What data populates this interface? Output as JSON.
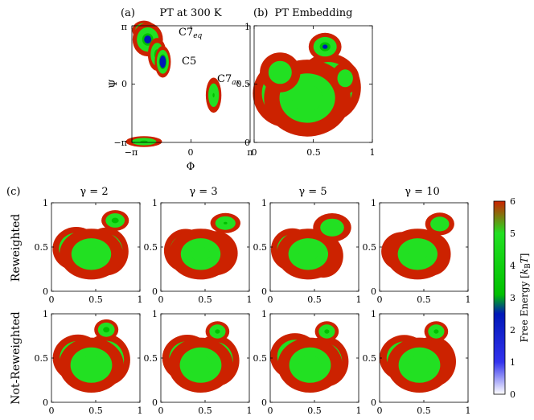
{
  "panels": {
    "a": {
      "label": "(a)",
      "title": "PT at 300 K",
      "xlabel": "Φ",
      "ylabel": "Ψ",
      "xticks": [
        "−π",
        "0",
        "π"
      ],
      "yticks": [
        "π",
        "0",
        "−π"
      ],
      "annotations": [
        {
          "base": "C7",
          "sub": "eq"
        },
        {
          "base": "C5",
          "sub": ""
        },
        {
          "base": "C7",
          "sub": "ax"
        }
      ]
    },
    "b": {
      "label": "(b)",
      "title": "PT Embedding",
      "xticks": [
        "0",
        "0.5",
        "1"
      ],
      "yticks": [
        "1",
        "0.5",
        "0"
      ]
    },
    "c": {
      "label": "(c)",
      "columns": [
        "γ = 2",
        "γ = 3",
        "γ = 5",
        "γ = 10"
      ],
      "rows": [
        {
          "label": "Reweighted",
          "color": "#d62020"
        },
        {
          "label": "Not-Reweighted",
          "color": "#1a1acc"
        }
      ],
      "xticks": [
        "0",
        "0.5",
        "1"
      ],
      "yticks": [
        "1",
        "0.5",
        "0"
      ]
    }
  },
  "colorbar": {
    "label": "Free Energy [k_B T]",
    "label_parts": {
      "pre": "Free Energy [",
      "k": "k",
      "sub": "B",
      "T": "T",
      "post": "]"
    },
    "ticks": [
      "0",
      "1",
      "2",
      "3",
      "4",
      "5",
      "6"
    ],
    "range": [
      0,
      6
    ],
    "stops": [
      {
        "v": 0,
        "color": "#ffffff"
      },
      {
        "v": 1,
        "color": "#3333ee"
      },
      {
        "v": 2.5,
        "color": "#0018b8"
      },
      {
        "v": 3.1,
        "color": "#00c000"
      },
      {
        "v": 5,
        "color": "#22e022"
      },
      {
        "v": 6,
        "color": "#cc2200"
      }
    ]
  },
  "chart_data": [
    {
      "type": "heatmap",
      "id": "a",
      "title": "PT at 300 K",
      "xlabel": "Φ",
      "ylabel": "Ψ",
      "xlim": [
        -3.1416,
        3.1416
      ],
      "ylim": [
        -3.1416,
        3.1416
      ],
      "basins": [
        {
          "x": -2.5,
          "y": 2.9,
          "sx": 0.3,
          "sy": 0.25,
          "depth": 5.2,
          "name": "C7eq"
        },
        {
          "x": -2.3,
          "y": 2.4,
          "sx": 0.4,
          "sy": 0.45,
          "depth": 4.6
        },
        {
          "x": -1.8,
          "y": 1.6,
          "sx": 0.25,
          "sy": 0.45,
          "depth": 4.2
        },
        {
          "x": -1.5,
          "y": 1.2,
          "sx": 0.2,
          "sy": 0.4,
          "depth": 5.8,
          "name": "C5"
        },
        {
          "x": 1.2,
          "y": -0.6,
          "sx": 0.22,
          "sy": 0.5,
          "depth": 3.6,
          "name": "C7ax"
        },
        {
          "x": -2.5,
          "y": -3.1,
          "sx": 0.5,
          "sy": 0.15,
          "depth": 3.8
        }
      ]
    },
    {
      "type": "heatmap",
      "id": "b",
      "title": "PT Embedding",
      "xlim": [
        0,
        1
      ],
      "ylim": [
        0,
        1
      ],
      "basins": [
        {
          "x": 0.28,
          "y": 0.42,
          "sx": 0.14,
          "sy": 0.14,
          "depth": 5.2
        },
        {
          "x": 0.63,
          "y": 0.47,
          "sx": 0.13,
          "sy": 0.14,
          "depth": 5.5
        },
        {
          "x": 0.45,
          "y": 0.38,
          "sx": 0.2,
          "sy": 0.18,
          "depth": 3.2
        },
        {
          "x": 0.22,
          "y": 0.6,
          "sx": 0.1,
          "sy": 0.1,
          "depth": 2.6
        },
        {
          "x": 0.6,
          "y": 0.82,
          "sx": 0.07,
          "sy": 0.06,
          "depth": 4.3
        },
        {
          "x": 0.77,
          "y": 0.55,
          "sx": 0.07,
          "sy": 0.08,
          "depth": 2.5
        }
      ]
    },
    {
      "type": "heatmap",
      "id": "c-r-2",
      "row": "Reweighted",
      "column": "γ = 2",
      "xlim": [
        0,
        1
      ],
      "ylim": [
        0,
        1
      ],
      "basins": [
        {
          "x": 0.28,
          "y": 0.48,
          "sx": 0.13,
          "sy": 0.12,
          "depth": 5.0
        },
        {
          "x": 0.62,
          "y": 0.45,
          "sx": 0.12,
          "sy": 0.13,
          "depth": 5.3
        },
        {
          "x": 0.45,
          "y": 0.42,
          "sx": 0.2,
          "sy": 0.16,
          "depth": 3.0
        },
        {
          "x": 0.72,
          "y": 0.8,
          "sx": 0.08,
          "sy": 0.06,
          "depth": 4.0
        }
      ]
    },
    {
      "type": "heatmap",
      "id": "c-r-3",
      "row": "Reweighted",
      "column": "γ = 3",
      "xlim": [
        0,
        1
      ],
      "ylim": [
        0,
        1
      ],
      "basins": [
        {
          "x": 0.28,
          "y": 0.46,
          "sx": 0.12,
          "sy": 0.12,
          "depth": 4.8
        },
        {
          "x": 0.62,
          "y": 0.43,
          "sx": 0.12,
          "sy": 0.12,
          "depth": 5.2
        },
        {
          "x": 0.45,
          "y": 0.42,
          "sx": 0.2,
          "sy": 0.16,
          "depth": 3.0
        },
        {
          "x": 0.73,
          "y": 0.77,
          "sx": 0.09,
          "sy": 0.06,
          "depth": 3.6
        }
      ]
    },
    {
      "type": "heatmap",
      "id": "c-r-5",
      "row": "Reweighted",
      "column": "γ = 5",
      "xlim": [
        0,
        1
      ],
      "ylim": [
        0,
        1
      ],
      "basins": [
        {
          "x": 0.25,
          "y": 0.47,
          "sx": 0.12,
          "sy": 0.12,
          "depth": 4.6
        },
        {
          "x": 0.6,
          "y": 0.4,
          "sx": 0.11,
          "sy": 0.12,
          "depth": 4.9
        },
        {
          "x": 0.43,
          "y": 0.42,
          "sx": 0.2,
          "sy": 0.16,
          "depth": 3.0
        },
        {
          "x": 0.7,
          "y": 0.72,
          "sx": 0.12,
          "sy": 0.09,
          "depth": 3.0
        }
      ]
    },
    {
      "type": "heatmap",
      "id": "c-r-10",
      "row": "Reweighted",
      "column": "γ = 10",
      "xlim": [
        0,
        1
      ],
      "ylim": [
        0,
        1
      ],
      "basins": [
        {
          "x": 0.26,
          "y": 0.45,
          "sx": 0.12,
          "sy": 0.11,
          "depth": 4.5
        },
        {
          "x": 0.58,
          "y": 0.42,
          "sx": 0.11,
          "sy": 0.12,
          "depth": 4.8
        },
        {
          "x": 0.43,
          "y": 0.42,
          "sx": 0.2,
          "sy": 0.16,
          "depth": 3.0
        },
        {
          "x": 0.68,
          "y": 0.76,
          "sx": 0.09,
          "sy": 0.07,
          "depth": 3.2
        }
      ]
    },
    {
      "type": "heatmap",
      "id": "c-n-2",
      "row": "Not-Reweighted",
      "column": "γ = 2",
      "xlim": [
        0,
        1
      ],
      "ylim": [
        0,
        1
      ],
      "basins": [
        {
          "x": 0.3,
          "y": 0.5,
          "sx": 0.14,
          "sy": 0.13,
          "depth": 4.8
        },
        {
          "x": 0.62,
          "y": 0.48,
          "sx": 0.13,
          "sy": 0.14,
          "depth": 5.2
        },
        {
          "x": 0.45,
          "y": 0.42,
          "sx": 0.2,
          "sy": 0.17,
          "depth": 3.2
        },
        {
          "x": 0.62,
          "y": 0.82,
          "sx": 0.07,
          "sy": 0.06,
          "depth": 4.0
        }
      ]
    },
    {
      "type": "heatmap",
      "id": "c-n-3",
      "row": "Not-Reweighted",
      "column": "γ = 3",
      "xlim": [
        0,
        1
      ],
      "ylim": [
        0,
        1
      ],
      "basins": [
        {
          "x": 0.3,
          "y": 0.5,
          "sx": 0.14,
          "sy": 0.13,
          "depth": 4.7
        },
        {
          "x": 0.62,
          "y": 0.47,
          "sx": 0.13,
          "sy": 0.14,
          "depth": 5.0
        },
        {
          "x": 0.45,
          "y": 0.42,
          "sx": 0.2,
          "sy": 0.17,
          "depth": 3.2
        },
        {
          "x": 0.64,
          "y": 0.8,
          "sx": 0.07,
          "sy": 0.06,
          "depth": 3.8
        }
      ]
    },
    {
      "type": "heatmap",
      "id": "c-n-5",
      "row": "Not-Reweighted",
      "column": "γ = 5",
      "xlim": [
        0,
        1
      ],
      "ylim": [
        0,
        1
      ],
      "basins": [
        {
          "x": 0.28,
          "y": 0.52,
          "sx": 0.14,
          "sy": 0.13,
          "depth": 4.5
        },
        {
          "x": 0.62,
          "y": 0.46,
          "sx": 0.13,
          "sy": 0.14,
          "depth": 4.8
        },
        {
          "x": 0.45,
          "y": 0.42,
          "sx": 0.2,
          "sy": 0.17,
          "depth": 3.2
        },
        {
          "x": 0.64,
          "y": 0.8,
          "sx": 0.07,
          "sy": 0.06,
          "depth": 3.8
        }
      ]
    },
    {
      "type": "heatmap",
      "id": "c-n-10",
      "row": "Not-Reweighted",
      "column": "γ = 10",
      "xlim": [
        0,
        1
      ],
      "ylim": [
        0,
        1
      ],
      "basins": [
        {
          "x": 0.28,
          "y": 0.5,
          "sx": 0.14,
          "sy": 0.13,
          "depth": 4.5
        },
        {
          "x": 0.6,
          "y": 0.46,
          "sx": 0.13,
          "sy": 0.14,
          "depth": 4.7
        },
        {
          "x": 0.45,
          "y": 0.42,
          "sx": 0.2,
          "sy": 0.17,
          "depth": 3.2
        },
        {
          "x": 0.64,
          "y": 0.8,
          "sx": 0.07,
          "sy": 0.06,
          "depth": 3.8
        }
      ]
    }
  ]
}
